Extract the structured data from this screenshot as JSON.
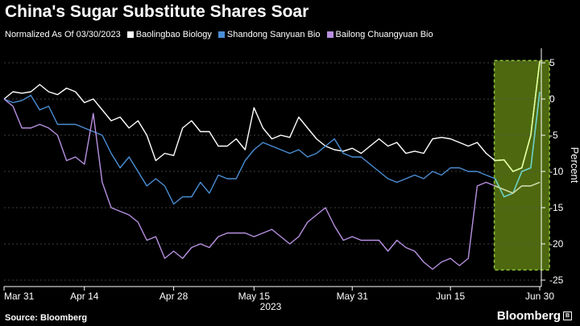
{
  "title": "China's Sugar Substitute Shares Soar",
  "legend_prefix": "Normalized As Of 03/30/2023",
  "source": "Source: Bloomberg",
  "brand": "Bloomberg",
  "chart_data": {
    "type": "line",
    "title": "China's Sugar Substitute Shares Soar",
    "subtitle": "Normalized As Of 03/30/2023",
    "ylabel": "Percent",
    "xlabel": "2023",
    "x_tick_labels": [
      "Mar 31",
      "Apr 14",
      "Apr 28",
      "May 15",
      "May 31",
      "Jun 15",
      "Jun 30"
    ],
    "x_tick_index": [
      0,
      9,
      19,
      28,
      39,
      50,
      60
    ],
    "y_ticks": [
      5,
      0,
      -5,
      -10,
      -15,
      -20,
      -25
    ],
    "y_tick_labels": [
      "5",
      "0",
      "-5",
      "-10",
      "-15",
      "-20",
      "-25"
    ],
    "ylim": [
      -25,
      5
    ],
    "y_axis_position": "right",
    "grid": "horizontal dashed",
    "legend_position": "top",
    "highlight": {
      "from_index": 55,
      "to_index": 61,
      "ymin": -23.6,
      "ymax": 5.3,
      "color": "#5a7a12"
    },
    "series": [
      {
        "name": "Baolingbao Biology",
        "color": "#ffffff",
        "values": [
          0,
          1,
          0.8,
          1,
          2,
          1,
          0.6,
          1.5,
          1,
          -0.5,
          0,
          -1.5,
          -3,
          -2.5,
          -4,
          -3,
          -5,
          -8.5,
          -7.5,
          -7.8,
          -4,
          -3,
          -4.5,
          -4.5,
          -6.5,
          -6.5,
          -5.5,
          -7,
          -1.2,
          -4,
          -5.5,
          -5,
          -5.3,
          -2.5,
          -4,
          -5.5,
          -6.5,
          -7,
          -7.2,
          -6.8,
          -7.5,
          -6.5,
          -5.5,
          -6.5,
          -6,
          -7.5,
          -7.2,
          -7.5,
          -5.5,
          -5.3,
          -5.5,
          -6,
          -6.5,
          -6,
          -7.5,
          -8.5,
          -8.4,
          -10,
          -9.5,
          -5,
          5.2
        ]
      },
      {
        "name": "Shandong Sanyuan Bio",
        "color": "#4a8fd6",
        "values": [
          0,
          -0.5,
          -0.2,
          0.5,
          -1.5,
          -1,
          -3.5,
          -3.5,
          -3.5,
          -4,
          -4.5,
          -5,
          -7.5,
          -9.5,
          -8,
          -10,
          -12,
          -11,
          -12,
          -14.5,
          -13.5,
          -13.5,
          -11.5,
          -13,
          -10.5,
          -11,
          -11,
          -8.5,
          -7,
          -6,
          -6.5,
          -7,
          -7.5,
          -7,
          -8,
          -7.5,
          -6.5,
          -5.5,
          -7.5,
          -8,
          -8,
          -9,
          -10,
          -11,
          -11.5,
          -11,
          -10.5,
          -11,
          -10,
          -10.5,
          -9.5,
          -9.5,
          -10,
          -10,
          -10.5,
          -11,
          -13.5,
          -13,
          -10,
          -9.5,
          1
        ]
      },
      {
        "name": "Bailong Chuangyuan Bio",
        "color": "#b890e0",
        "values": [
          0,
          -1,
          -4,
          -4,
          -3.5,
          -4,
          -5,
          -8.5,
          -8,
          -9,
          -2,
          -11.5,
          -15,
          -15.5,
          -16,
          -17,
          -19.5,
          -19,
          -22,
          -21,
          -22,
          -20.5,
          -20,
          -20.5,
          -19,
          -18.5,
          -18.5,
          -18.5,
          -19,
          -18.5,
          -18,
          -19,
          -20,
          -19,
          -17,
          -16,
          -15,
          -17.5,
          -19.5,
          -19,
          -19.5,
          -19.5,
          -19.5,
          -21,
          -19.5,
          -20.5,
          -21,
          -22.5,
          -23.5,
          -22.5,
          -22,
          -23,
          -22,
          -12,
          -11.5,
          -12,
          -12.5,
          -13,
          -12,
          -12,
          -11.5
        ]
      }
    ]
  }
}
